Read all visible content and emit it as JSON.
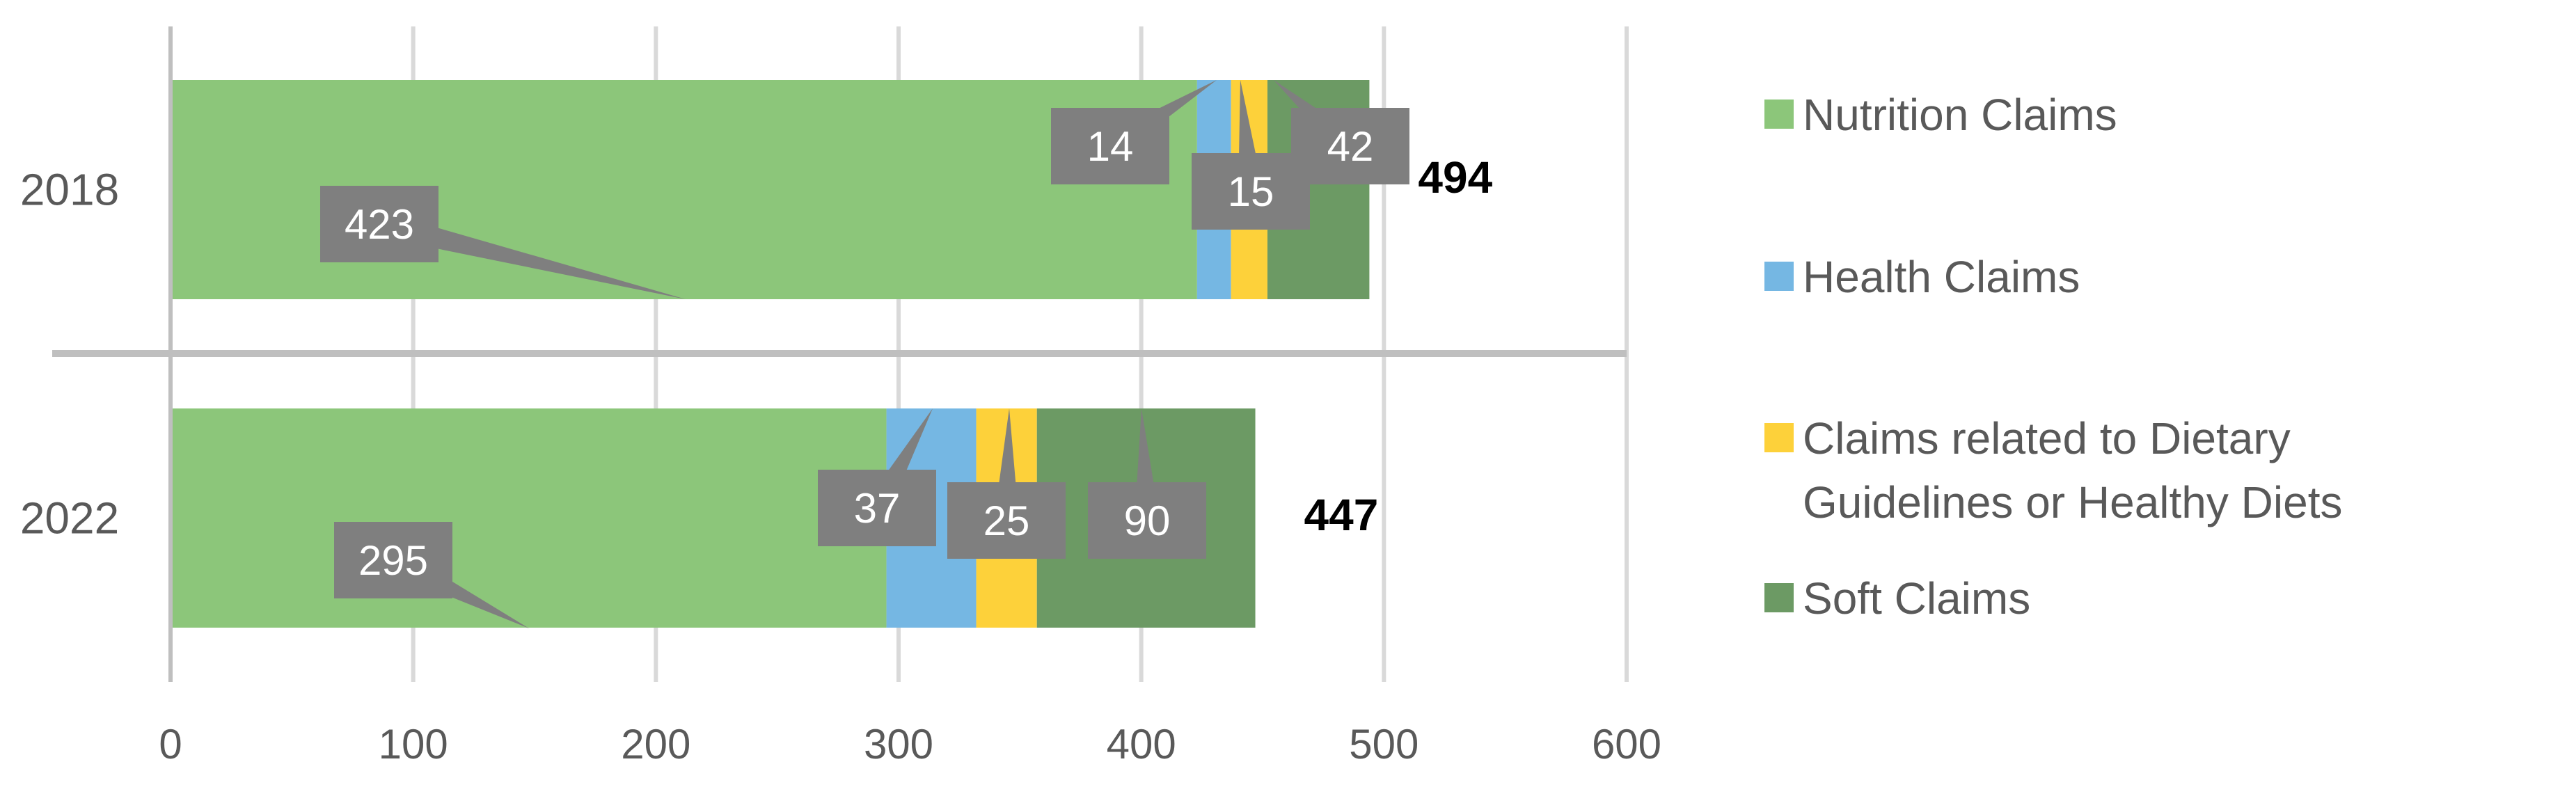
{
  "chart_data": {
    "type": "bar",
    "orientation": "horizontal",
    "stacked": true,
    "categories": [
      "2018",
      "2022"
    ],
    "series": [
      {
        "name": "Nutrition Claims",
        "values": [
          423,
          295
        ],
        "color": "#8cc67a"
      },
      {
        "name": "Health Claims",
        "values": [
          14,
          37
        ],
        "color": "#75b7e3"
      },
      {
        "name": "Claims related to Dietary Guidelines or Healthy Diets",
        "values": [
          15,
          25
        ],
        "color": "#fdd13a"
      },
      {
        "name": "Soft Claims",
        "values": [
          42,
          90
        ],
        "color": "#6c9a64"
      }
    ],
    "totals": [
      494,
      447
    ],
    "xlim": [
      0,
      600
    ],
    "xticks": [
      0,
      100,
      200,
      300,
      400,
      500,
      600
    ],
    "grid": true,
    "legend_position": "right",
    "label_box_color": "#7f7f7f"
  }
}
